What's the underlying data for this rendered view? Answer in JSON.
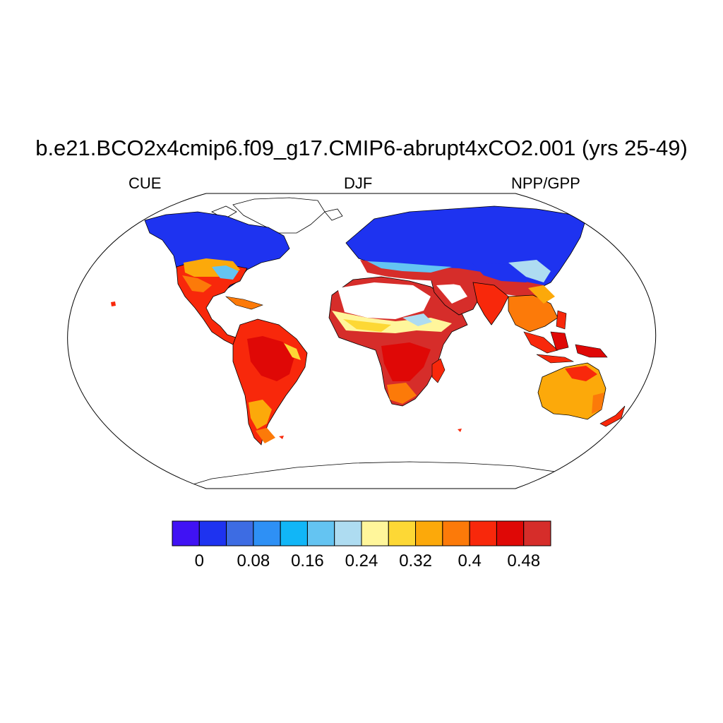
{
  "title": "b.e21.BCO2x4cmip6.f09_g17.CMIP6-abrupt4xCO2.001 (yrs 25-49)",
  "subtitle_left": "CUE",
  "subtitle_center": "DJF",
  "subtitle_right": "NPP/GPP",
  "colorbar": {
    "colors": [
      "#4012f4",
      "#1e33f0",
      "#3d6ce3",
      "#2e90f5",
      "#11b6f7",
      "#64c4f2",
      "#aedcf1",
      "#fff69b",
      "#fdd835",
      "#fca90a",
      "#fc7a09",
      "#f8280b",
      "#df0806",
      "#d62d2a"
    ],
    "ticks": [
      "0",
      "0.08",
      "0.16",
      "0.24",
      "0.32",
      "0.4",
      "0.48"
    ]
  },
  "map": {
    "projection": "Robinson",
    "missing_value_color": "#ffffff",
    "land_outline_color": "#000000"
  }
}
